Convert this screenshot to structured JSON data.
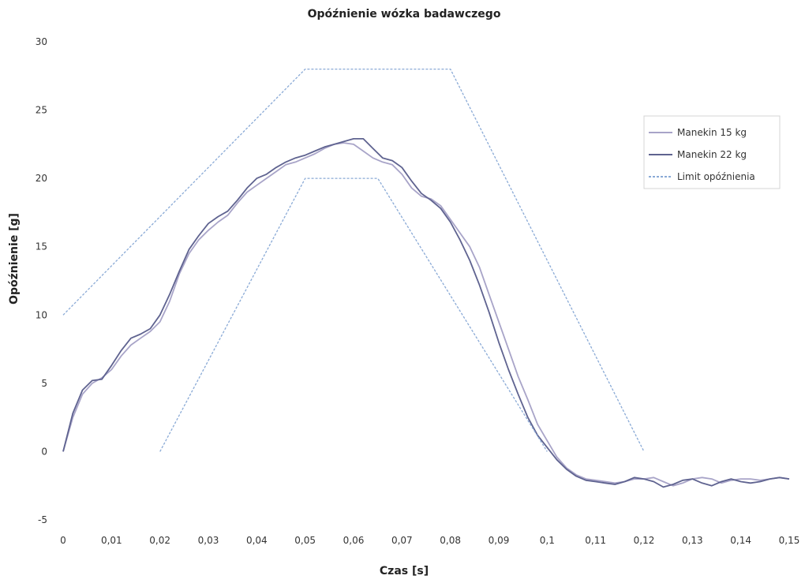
{
  "chart_data": {
    "type": "line",
    "title": "Opóźnienie wózka badawczego",
    "xlabel": "Czas [s]",
    "ylabel": "Opóźnienie [g]",
    "xlim": [
      0,
      0.15
    ],
    "ylim": [
      -5,
      30
    ],
    "x_ticks": [
      0,
      0.01,
      0.02,
      0.03,
      0.04,
      0.05,
      0.06,
      0.07,
      0.08,
      0.09,
      0.1,
      0.11,
      0.12,
      0.13,
      0.14,
      0.15
    ],
    "x_tick_labels": [
      "0",
      "0,01",
      "0,02",
      "0,03",
      "0,04",
      "0,05",
      "0,06",
      "0,07",
      "0,08",
      "0,09",
      "0,1",
      "0,11",
      "0,12",
      "0,13",
      "0,14",
      "0,15"
    ],
    "y_ticks": [
      -5,
      0,
      5,
      10,
      15,
      20,
      25,
      30
    ],
    "y_tick_labels": [
      "-5",
      "0",
      "5",
      "10",
      "15",
      "20",
      "25",
      "30"
    ],
    "grid": false,
    "legend_position": "right",
    "series": [
      {
        "name": "Manekin 15 kg",
        "color": "#a8a4c8",
        "points": [
          [
            0,
            0
          ],
          [
            0.002,
            2.5
          ],
          [
            0.004,
            4.2
          ],
          [
            0.006,
            5.0
          ],
          [
            0.008,
            5.4
          ],
          [
            0.01,
            6.0
          ],
          [
            0.012,
            7.0
          ],
          [
            0.014,
            7.8
          ],
          [
            0.016,
            8.3
          ],
          [
            0.018,
            8.8
          ],
          [
            0.02,
            9.5
          ],
          [
            0.022,
            11.0
          ],
          [
            0.024,
            13.0
          ],
          [
            0.026,
            14.5
          ],
          [
            0.028,
            15.5
          ],
          [
            0.03,
            16.2
          ],
          [
            0.032,
            16.8
          ],
          [
            0.034,
            17.3
          ],
          [
            0.036,
            18.2
          ],
          [
            0.038,
            19.0
          ],
          [
            0.04,
            19.5
          ],
          [
            0.042,
            20.0
          ],
          [
            0.044,
            20.5
          ],
          [
            0.046,
            21.0
          ],
          [
            0.048,
            21.2
          ],
          [
            0.05,
            21.5
          ],
          [
            0.052,
            21.8
          ],
          [
            0.054,
            22.2
          ],
          [
            0.056,
            22.5
          ],
          [
            0.058,
            22.6
          ],
          [
            0.06,
            22.5
          ],
          [
            0.062,
            22.0
          ],
          [
            0.064,
            21.5
          ],
          [
            0.066,
            21.2
          ],
          [
            0.068,
            21.0
          ],
          [
            0.07,
            20.3
          ],
          [
            0.072,
            19.3
          ],
          [
            0.074,
            18.7
          ],
          [
            0.076,
            18.5
          ],
          [
            0.078,
            18.0
          ],
          [
            0.08,
            17.0
          ],
          [
            0.082,
            16.0
          ],
          [
            0.084,
            15.0
          ],
          [
            0.086,
            13.5
          ],
          [
            0.088,
            11.5
          ],
          [
            0.09,
            9.5
          ],
          [
            0.092,
            7.5
          ],
          [
            0.094,
            5.5
          ],
          [
            0.096,
            3.8
          ],
          [
            0.098,
            2.0
          ],
          [
            0.1,
            0.8
          ],
          [
            0.102,
            -0.4
          ],
          [
            0.104,
            -1.2
          ],
          [
            0.106,
            -1.7
          ],
          [
            0.108,
            -2.0
          ],
          [
            0.11,
            -2.1
          ],
          [
            0.112,
            -2.2
          ],
          [
            0.114,
            -2.3
          ],
          [
            0.116,
            -2.2
          ],
          [
            0.118,
            -2.0
          ],
          [
            0.12,
            -2.0
          ],
          [
            0.122,
            -1.9
          ],
          [
            0.124,
            -2.2
          ],
          [
            0.126,
            -2.5
          ],
          [
            0.128,
            -2.3
          ],
          [
            0.13,
            -2.0
          ],
          [
            0.132,
            -1.9
          ],
          [
            0.134,
            -2.0
          ],
          [
            0.136,
            -2.3
          ],
          [
            0.138,
            -2.1
          ],
          [
            0.14,
            -2.0
          ],
          [
            0.142,
            -2.0
          ],
          [
            0.144,
            -2.1
          ],
          [
            0.146,
            -2.0
          ],
          [
            0.148,
            -1.9
          ],
          [
            0.15,
            -2.0
          ]
        ]
      },
      {
        "name": "Manekin 22 kg",
        "color": "#5f6390",
        "points": [
          [
            0,
            0
          ],
          [
            0.002,
            2.8
          ],
          [
            0.004,
            4.5
          ],
          [
            0.006,
            5.2
          ],
          [
            0.008,
            5.3
          ],
          [
            0.01,
            6.3
          ],
          [
            0.012,
            7.4
          ],
          [
            0.014,
            8.3
          ],
          [
            0.016,
            8.6
          ],
          [
            0.018,
            9.0
          ],
          [
            0.02,
            10.0
          ],
          [
            0.022,
            11.5
          ],
          [
            0.024,
            13.2
          ],
          [
            0.026,
            14.8
          ],
          [
            0.028,
            15.8
          ],
          [
            0.03,
            16.7
          ],
          [
            0.032,
            17.2
          ],
          [
            0.034,
            17.6
          ],
          [
            0.036,
            18.4
          ],
          [
            0.038,
            19.3
          ],
          [
            0.04,
            20.0
          ],
          [
            0.042,
            20.3
          ],
          [
            0.044,
            20.8
          ],
          [
            0.046,
            21.2
          ],
          [
            0.048,
            21.5
          ],
          [
            0.05,
            21.7
          ],
          [
            0.052,
            22.0
          ],
          [
            0.054,
            22.3
          ],
          [
            0.056,
            22.5
          ],
          [
            0.058,
            22.7
          ],
          [
            0.06,
            22.9
          ],
          [
            0.062,
            22.9
          ],
          [
            0.064,
            22.2
          ],
          [
            0.066,
            21.5
          ],
          [
            0.068,
            21.3
          ],
          [
            0.07,
            20.8
          ],
          [
            0.072,
            19.8
          ],
          [
            0.074,
            18.9
          ],
          [
            0.076,
            18.4
          ],
          [
            0.078,
            17.8
          ],
          [
            0.08,
            16.8
          ],
          [
            0.082,
            15.5
          ],
          [
            0.084,
            14.0
          ],
          [
            0.086,
            12.2
          ],
          [
            0.088,
            10.2
          ],
          [
            0.09,
            8.0
          ],
          [
            0.092,
            6.0
          ],
          [
            0.094,
            4.2
          ],
          [
            0.096,
            2.5
          ],
          [
            0.098,
            1.2
          ],
          [
            0.1,
            0.3
          ],
          [
            0.102,
            -0.6
          ],
          [
            0.104,
            -1.3
          ],
          [
            0.106,
            -1.8
          ],
          [
            0.108,
            -2.1
          ],
          [
            0.11,
            -2.2
          ],
          [
            0.112,
            -2.3
          ],
          [
            0.114,
            -2.4
          ],
          [
            0.116,
            -2.2
          ],
          [
            0.118,
            -1.9
          ],
          [
            0.12,
            -2.0
          ],
          [
            0.122,
            -2.2
          ],
          [
            0.124,
            -2.6
          ],
          [
            0.126,
            -2.4
          ],
          [
            0.128,
            -2.1
          ],
          [
            0.13,
            -2.0
          ],
          [
            0.132,
            -2.3
          ],
          [
            0.134,
            -2.5
          ],
          [
            0.136,
            -2.2
          ],
          [
            0.138,
            -2.0
          ],
          [
            0.14,
            -2.2
          ],
          [
            0.142,
            -2.3
          ],
          [
            0.144,
            -2.2
          ],
          [
            0.146,
            -2.0
          ],
          [
            0.148,
            -1.9
          ],
          [
            0.15,
            -2.0
          ]
        ]
      },
      {
        "name": "Limit opóźnienia",
        "color": "#8aaad6",
        "dashed": true,
        "segments": [
          [
            [
              0,
              10
            ],
            [
              0.05,
              28
            ],
            [
              0.08,
              28
            ],
            [
              0.12,
              0
            ]
          ],
          [
            [
              0.02,
              0
            ],
            [
              0.05,
              20
            ],
            [
              0.065,
              20
            ],
            [
              0.1,
              0
            ]
          ]
        ]
      }
    ]
  }
}
